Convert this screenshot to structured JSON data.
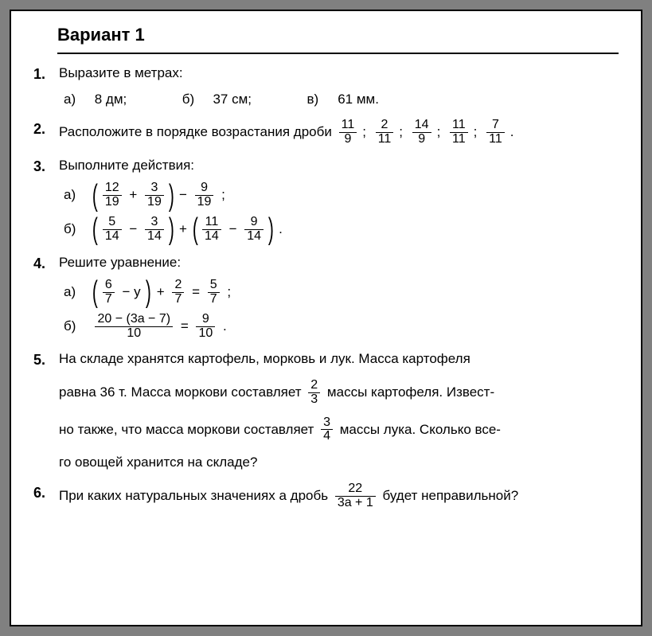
{
  "title": "Вариант 1",
  "p1": {
    "prompt": "Выразите в метрах:",
    "a": "8 дм;",
    "b": "37 см;",
    "c": "61 мм."
  },
  "p2": {
    "text_before": "Расположите в порядке возрастания дроби",
    "fracs": [
      {
        "n": "11",
        "d": "9"
      },
      {
        "n": "2",
        "d": "11"
      },
      {
        "n": "14",
        "d": "9"
      },
      {
        "n": "11",
        "d": "11"
      },
      {
        "n": "7",
        "d": "11"
      }
    ]
  },
  "p3": {
    "prompt": "Выполните действия:",
    "a": {
      "f1": {
        "n": "12",
        "d": "19"
      },
      "f2": {
        "n": "3",
        "d": "19"
      },
      "f3": {
        "n": "9",
        "d": "19"
      }
    },
    "b": {
      "f1": {
        "n": "5",
        "d": "14"
      },
      "f2": {
        "n": "3",
        "d": "14"
      },
      "f3": {
        "n": "11",
        "d": "14"
      },
      "f4": {
        "n": "9",
        "d": "14"
      }
    }
  },
  "p4": {
    "prompt": "Решите уравнение:",
    "a": {
      "f1": {
        "n": "6",
        "d": "7"
      },
      "f2": {
        "n": "2",
        "d": "7"
      },
      "f3": {
        "n": "5",
        "d": "7"
      }
    },
    "b": {
      "lhs": {
        "n": "20 − (3a − 7)",
        "d": "10"
      },
      "rhs": {
        "n": "9",
        "d": "10"
      }
    }
  },
  "p5": {
    "l1a": "На складе хранятся картофель, морковь и лук. Масса картофеля",
    "l2a": "равна 36 т. Масса моркови составляет",
    "f1": {
      "n": "2",
      "d": "3"
    },
    "l2b": "массы картофеля. Извест-",
    "l3a": "но также, что масса моркови составляет",
    "f2": {
      "n": "3",
      "d": "4"
    },
    "l3b": "массы лука. Сколько все-",
    "l4": "го овощей хранится на складе?"
  },
  "p6": {
    "before": "При каких натуральных значениях a дробь",
    "frac": {
      "n": "22",
      "d": "3a + 1"
    },
    "after": "будет неправильной?"
  },
  "labels": {
    "a": "а)",
    "b": "б)",
    "c": "в)"
  }
}
